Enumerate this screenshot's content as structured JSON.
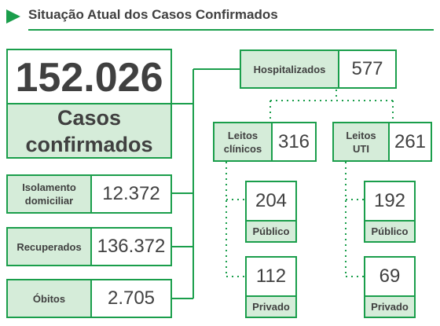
{
  "header": {
    "title": "Situação Atual dos Casos Confirmados"
  },
  "total": {
    "value": "152.026",
    "label_line1": "Casos",
    "label_line2": "confirmados"
  },
  "status": [
    {
      "label_line1": "Isolamento",
      "label_line2": "domiciliar",
      "value": "12.372"
    },
    {
      "label": "Recuperados",
      "value": "136.372"
    },
    {
      "label": "Óbitos",
      "value": "2.705"
    }
  ],
  "hospital": {
    "label": "Hospitalizados",
    "value": "577"
  },
  "clinical": {
    "label_line1": "Leitos",
    "label_line2": "clínicos",
    "value": "316",
    "public": {
      "value": "204",
      "label": "Público"
    },
    "private": {
      "value": "112",
      "label": "Privado"
    }
  },
  "icu": {
    "label_line1": "Leitos",
    "label_line2": "UTI",
    "value": "261",
    "public": {
      "value": "192",
      "label": "Público"
    },
    "private": {
      "value": "69",
      "label": "Privado"
    }
  },
  "colors": {
    "accent": "#1a9e4b",
    "fill": "#d5ecd9",
    "text": "#404040"
  }
}
